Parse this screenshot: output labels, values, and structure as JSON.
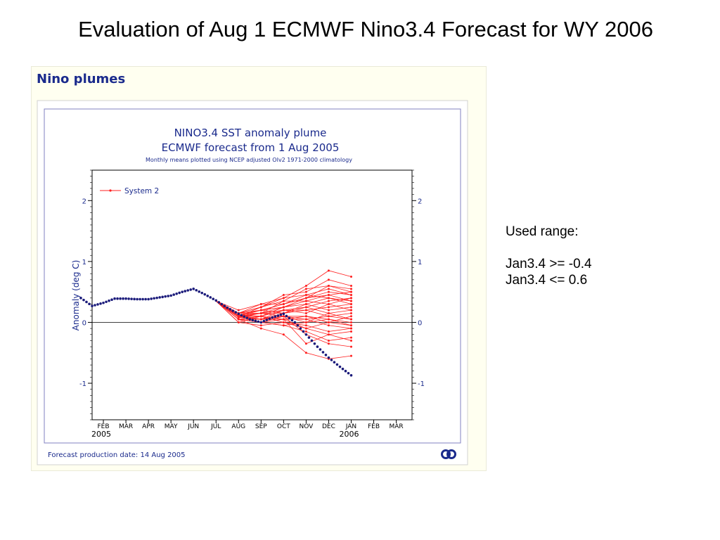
{
  "slide": {
    "title": "Evaluation of Aug 1 ECMWF Nino3.4 Forecast for WY 2006"
  },
  "panel": {
    "heading": "Nino plumes"
  },
  "notes": {
    "heading": "Used range:",
    "lines": [
      "Jan3.4 >= -0.4",
      "Jan3.4 <= 0.6"
    ]
  },
  "chart_data": {
    "type": "line",
    "title_line1_regular": "NINO3.4 SST",
    "title_line1_anomaly": "anomaly plume",
    "title_line2_regular": "ECMWF",
    "title_line2_forecast": "forecast from",
    "title_line2_date": " 1 Aug 2005",
    "subtitle": "Monthly means plotted using NCEP adjusted OIv2 1971-2000 climatology",
    "ylabel": "Anomaly (deg C)",
    "ylim": [
      -1.6,
      2.5
    ],
    "xlim": [
      0.5,
      14.7
    ],
    "yticks": [
      -1,
      0,
      1,
      2
    ],
    "ytick_labels": [
      "-1",
      "0",
      "1",
      "2"
    ],
    "month_labels": [
      "FEB",
      "MAR",
      "APR",
      "MAY",
      "JUN",
      "JUL",
      "AUG",
      "SEP",
      "OCT",
      "NOV",
      "DEC",
      "JAN",
      "FEB",
      "MAR"
    ],
    "year_labels": [
      {
        "text": "2005",
        "month_index": 0
      },
      {
        "text": "2006",
        "month_index": 11
      }
    ],
    "legend": {
      "label": "System 2",
      "position": "top-left"
    },
    "footer": "Forecast production date: 14 Aug 2005",
    "colors": {
      "plume": "#ff2020",
      "observed": "#1a1a7a",
      "chart_text": "#1a2a8c",
      "frame": "#8080c0",
      "logo": "#1a2a8c"
    },
    "observed": {
      "name": "",
      "x": [
        0,
        0.5,
        1,
        1.5,
        2,
        2.5,
        3,
        3.5,
        4,
        4.5,
        5,
        5.5,
        6,
        6.5,
        7,
        7.5,
        8,
        8.5,
        9,
        9.5,
        10,
        10.5,
        11,
        11.5,
        12
      ],
      "y": [
        0.4,
        0.27,
        0.32,
        0.39,
        0.39,
        0.38,
        0.38,
        0.41,
        0.44,
        0.5,
        0.55,
        0.46,
        0.36,
        0.24,
        0.14,
        0.05,
        0.0,
        0.08,
        0.14,
        0.0,
        -0.2,
        -0.4,
        -0.58,
        -0.73,
        -0.87
      ]
    },
    "plume": {
      "name": "System 2",
      "x": [
        6,
        7,
        8,
        9,
        10,
        11,
        12
      ],
      "members": [
        [
          0.35,
          0.1,
          0.05,
          0.05,
          -0.35,
          -0.2,
          -0.15
        ],
        [
          0.35,
          0.05,
          -0.1,
          -0.2,
          -0.5,
          -0.6,
          -0.55
        ],
        [
          0.35,
          0.12,
          0.05,
          0.1,
          -0.2,
          -0.35,
          -0.4
        ],
        [
          0.35,
          0.15,
          0.2,
          0.3,
          0.4,
          0.6,
          0.5
        ],
        [
          0.35,
          0.2,
          0.3,
          0.4,
          0.6,
          0.85,
          0.75
        ],
        [
          0.35,
          0.15,
          0.25,
          0.35,
          0.55,
          0.6,
          0.55
        ],
        [
          0.35,
          0.1,
          0.15,
          0.25,
          0.35,
          0.45,
          0.35
        ],
        [
          0.35,
          0.05,
          0.0,
          0.1,
          0.0,
          0.15,
          0.2
        ],
        [
          0.35,
          0.1,
          0.1,
          0.2,
          0.2,
          0.25,
          0.3
        ],
        [
          0.35,
          0.0,
          -0.05,
          0.0,
          -0.05,
          -0.15,
          -0.1
        ],
        [
          0.35,
          0.15,
          0.2,
          0.25,
          0.4,
          0.5,
          0.45
        ],
        [
          0.35,
          0.12,
          0.15,
          0.2,
          0.25,
          0.35,
          0.4
        ],
        [
          0.35,
          0.08,
          0.05,
          0.05,
          0.1,
          0.05,
          0.0
        ],
        [
          0.35,
          0.05,
          0.0,
          -0.05,
          -0.15,
          -0.3,
          -0.25
        ],
        [
          0.35,
          0.1,
          0.2,
          0.3,
          0.45,
          0.4,
          0.35
        ],
        [
          0.35,
          0.15,
          0.25,
          0.45,
          0.5,
          0.7,
          0.6
        ],
        [
          0.35,
          0.1,
          0.05,
          0.15,
          0.2,
          0.1,
          0.05
        ],
        [
          0.35,
          0.05,
          0.1,
          0.05,
          -0.1,
          0.0,
          0.1
        ],
        [
          0.35,
          0.12,
          0.2,
          0.15,
          0.3,
          0.2,
          0.25
        ],
        [
          0.35,
          0.0,
          0.1,
          0.25,
          0.3,
          0.4,
          0.3
        ],
        [
          0.35,
          0.1,
          0.05,
          0.1,
          0.05,
          -0.05,
          -0.1
        ],
        [
          0.35,
          0.15,
          0.15,
          0.35,
          0.35,
          0.3,
          0.2
        ],
        [
          0.35,
          0.05,
          0.0,
          -0.05,
          0.0,
          0.05,
          -0.05
        ],
        [
          0.35,
          0.1,
          0.25,
          0.4,
          0.45,
          0.55,
          0.45
        ],
        [
          0.35,
          0.12,
          0.1,
          0.0,
          -0.1,
          -0.2,
          -0.3
        ],
        [
          0.35,
          0.1,
          0.15,
          0.15,
          0.25,
          0.15,
          0.05
        ],
        [
          0.35,
          0.05,
          0.05,
          0.2,
          0.15,
          0.3,
          0.4
        ],
        [
          0.35,
          0.08,
          0.15,
          0.1,
          0.1,
          0.0,
          -0.05
        ],
        [
          0.35,
          0.15,
          0.3,
          0.3,
          0.4,
          0.45,
          0.5
        ],
        [
          0.35,
          0.1,
          0.0,
          0.05,
          0.05,
          0.1,
          0.15
        ]
      ]
    }
  }
}
